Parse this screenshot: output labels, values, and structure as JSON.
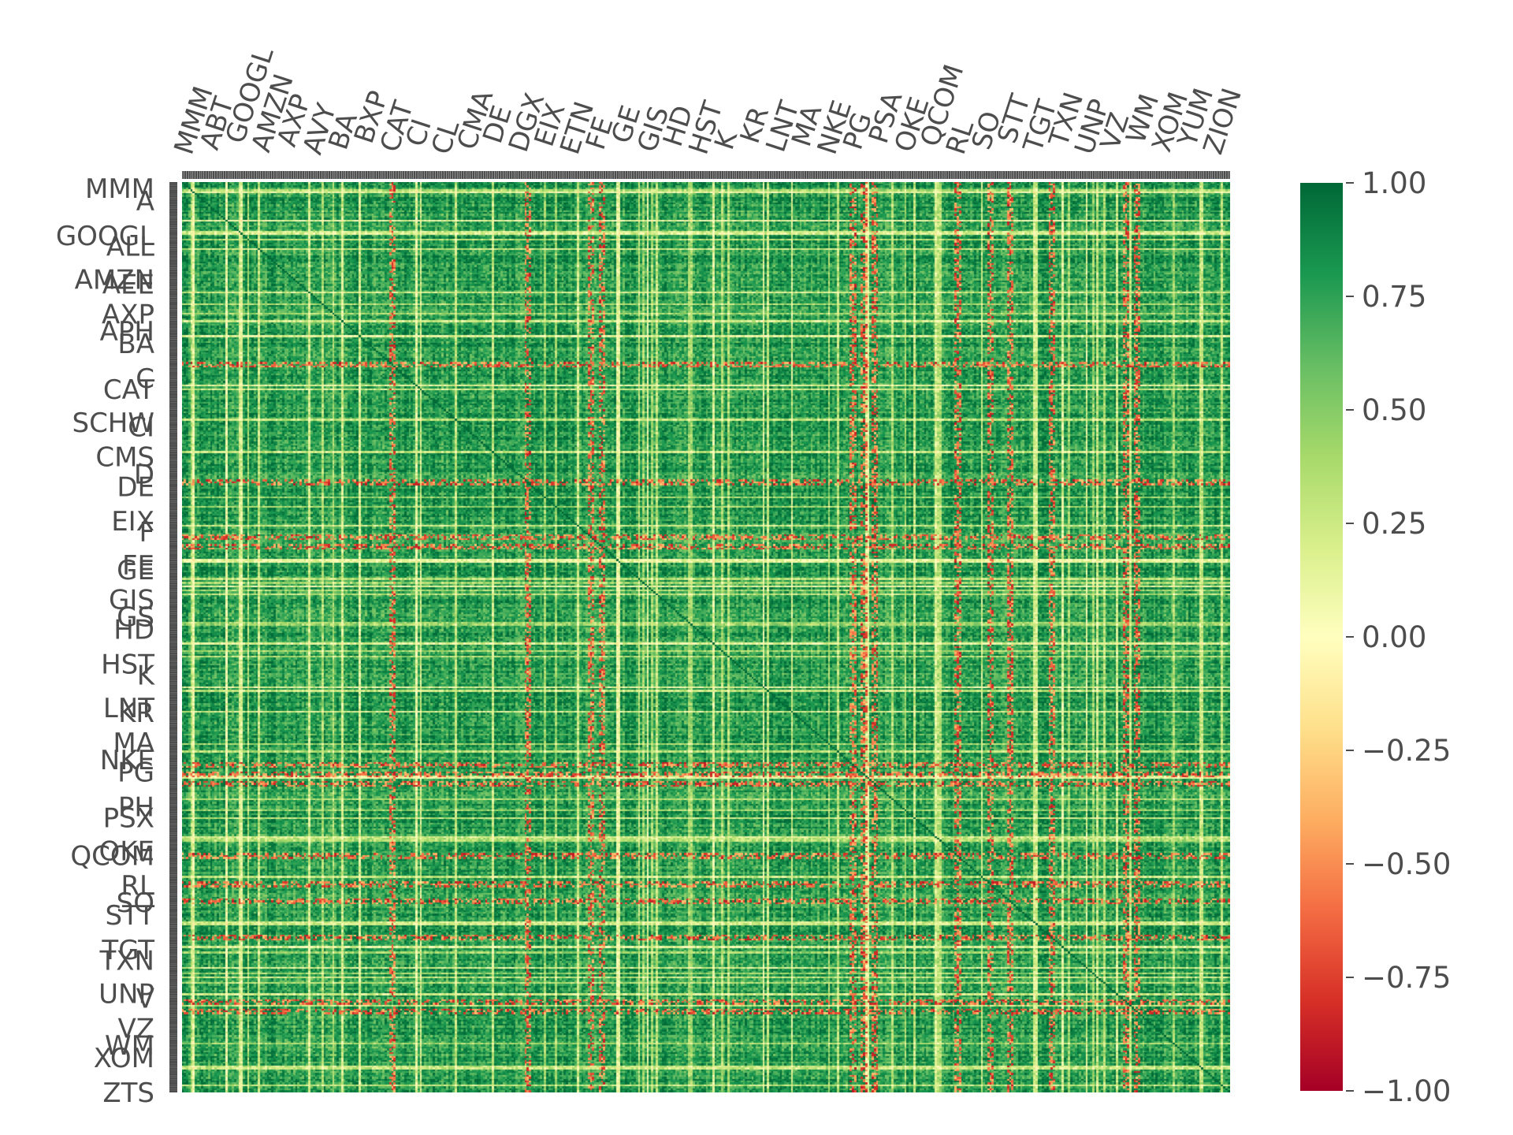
{
  "chart_data": {
    "type": "heatmap",
    "title": "",
    "xlabel": "",
    "ylabel": "",
    "colormap": "RdYlGn",
    "value_range": [
      -1.0,
      1.0
    ],
    "colorbar": {
      "ticks": [
        1.0,
        0.75,
        0.5,
        0.25,
        0.0,
        -0.25,
        -0.5,
        -0.75,
        -1.0
      ],
      "tick_labels": [
        "1.00",
        "0.75",
        "0.50",
        "0.25",
        "0.00",
        "−0.25",
        "−0.50",
        "−0.75",
        "−1.00"
      ]
    },
    "x_axis_position": "top",
    "tick_label_color": "#4d4d4d",
    "matrix_size": 480,
    "diagonal_value": 1.0,
    "typical_correlation": 0.7,
    "negative_rows_approx": [
      0.33,
      0.4,
      0.64,
      0.77,
      0.79
    ],
    "negative_cols_approx": [
      0.2,
      0.39,
      0.4,
      0.64,
      0.65,
      0.66,
      0.74,
      0.83,
      0.9,
      0.91
    ],
    "visible_y_tick_labels": [
      "MMM",
      "A",
      "GOOGL",
      "ALL",
      "AMZN",
      "AEE",
      "AXP",
      "APH",
      "BA",
      "C",
      "CAT",
      "SCHW",
      "CI",
      "CMS",
      "D",
      "DE",
      "EIX",
      "F",
      "FE",
      "GE",
      "GIS",
      "GS",
      "HD",
      "HST",
      "K",
      "LNT",
      "KR",
      "MA",
      "NKE",
      "PG",
      "PH",
      "PSX",
      "OKE",
      "QCOM",
      "RL",
      "SO",
      "STT",
      "TGT",
      "TXN",
      "UNP",
      "V",
      "VZ",
      "WM",
      "XOM",
      "ZTS"
    ],
    "visible_x_tick_labels": [
      "MMM",
      "ABT",
      "GOOGL",
      "AMZN",
      "AXP",
      "AVY",
      "BA",
      "BXP",
      "CAT",
      "CI",
      "CL",
      "CMA",
      "DE",
      "DGX",
      "EIX",
      "ETN",
      "FE",
      "GE",
      "GIS",
      "HD",
      "HST",
      "K",
      "KR",
      "LNT",
      "MA",
      "NKE",
      "PG",
      "PSA",
      "OKE",
      "QCOM",
      "RL",
      "SO",
      "STT",
      "TGT",
      "TXN",
      "UNP",
      "VZ",
      "WM",
      "XOM",
      "YUM",
      "ZION"
    ]
  }
}
